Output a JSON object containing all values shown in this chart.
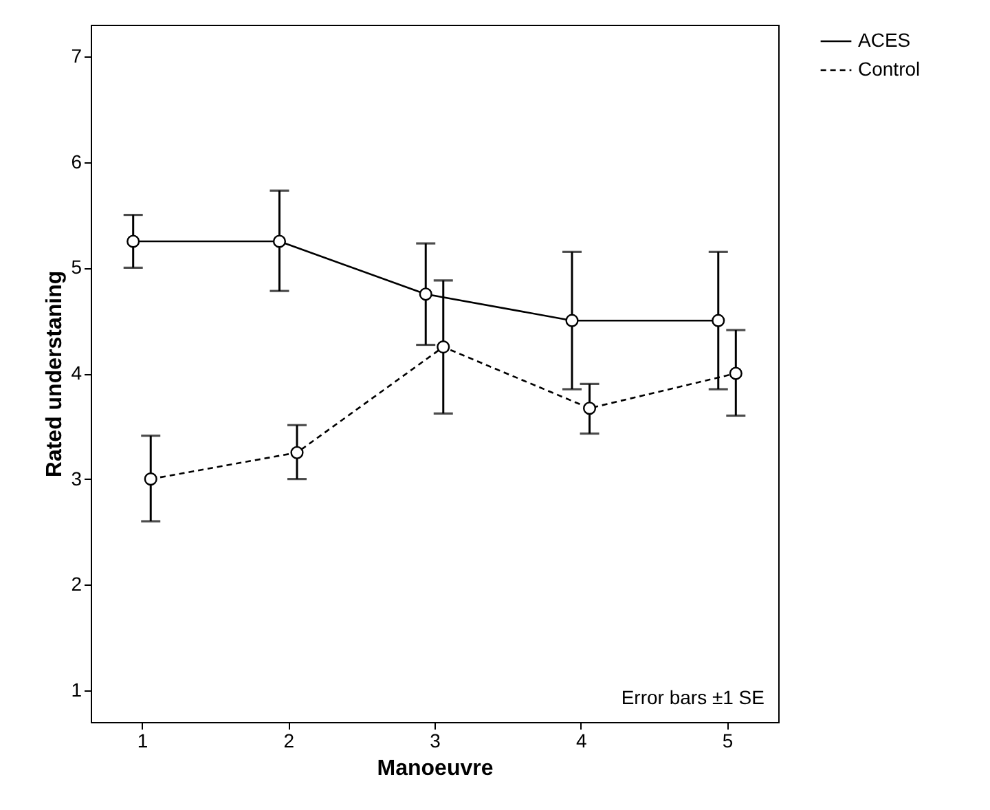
{
  "chart_data": {
    "type": "line",
    "xlabel": "Manoeuvre",
    "ylabel": "Rated understaning",
    "xlim": [
      0.65,
      5.35
    ],
    "xticks": [
      1,
      2,
      3,
      4,
      5
    ],
    "ylim": [
      0.7,
      7.3
    ],
    "yticks": [
      1,
      2,
      3,
      4,
      5,
      6,
      7
    ],
    "series": [
      {
        "name": "ACES",
        "color": "#000000",
        "line_style": "solid",
        "x": [
          0.94,
          1.94,
          2.94,
          3.94,
          4.94
        ],
        "values": [
          5.25,
          5.25,
          4.75,
          4.5,
          4.5
        ],
        "errors": [
          [
            5.0,
            5.5
          ],
          [
            4.78,
            5.73
          ],
          [
            4.27,
            5.23
          ],
          [
            3.85,
            5.15
          ],
          [
            3.85,
            5.15
          ]
        ]
      },
      {
        "name": "Control",
        "color": "#000000",
        "line_style": "dashed",
        "x": [
          1.06,
          2.06,
          3.06,
          4.06,
          5.06
        ],
        "values": [
          3.0,
          3.25,
          4.25,
          3.67,
          4.0
        ],
        "errors": [
          [
            2.6,
            3.41
          ],
          [
            3.0,
            3.51
          ],
          [
            3.62,
            4.88
          ],
          [
            3.43,
            3.9
          ],
          [
            3.6,
            4.41
          ]
        ]
      }
    ],
    "marker": "circle",
    "legend": "right",
    "annotations": [
      "Error bars ±1 SE"
    ]
  }
}
